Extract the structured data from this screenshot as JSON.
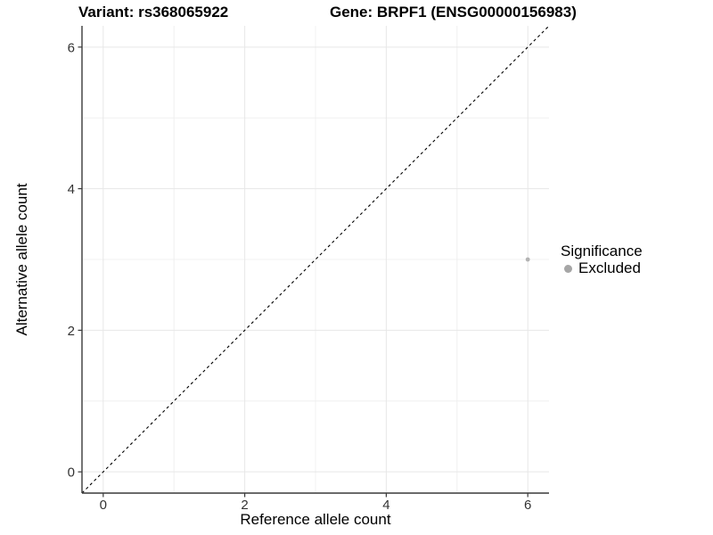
{
  "chart_data": {
    "type": "scatter",
    "titles": {
      "left": "Variant: rs368065922",
      "right": "Gene: BRPF1 (ENSG00000156983)"
    },
    "xlabel": "Reference allele count",
    "ylabel": "Alternative allele count",
    "xlim": [
      -0.3,
      6.3
    ],
    "ylim": [
      -0.3,
      6.3
    ],
    "xticks": [
      0,
      2,
      4,
      6
    ],
    "yticks": [
      0,
      2,
      4,
      6
    ],
    "x_minor_gridlines": [
      1,
      3,
      5
    ],
    "y_minor_gridlines": [
      1,
      3,
      5
    ],
    "grid": true,
    "points": [
      {
        "x": 6,
        "y": 3,
        "significance": "Excluded"
      }
    ],
    "reference_line": {
      "type": "identity",
      "slope": 1,
      "intercept": 0,
      "linetype": "dashed"
    },
    "legend": {
      "title": "Significance",
      "position": "right",
      "entries": [
        {
          "label": "Excluded",
          "color": "#a6a6a6"
        }
      ]
    },
    "colors": {
      "point": "#b3b3b3",
      "grid_major": "#e7e7e7",
      "grid_minor": "#f0f0f0",
      "axis_line": "#3a3a3a",
      "tick_mark": "#3a3a3a",
      "tick_label": "#333333",
      "reference_line": "#000000",
      "background": "#ffffff"
    }
  }
}
